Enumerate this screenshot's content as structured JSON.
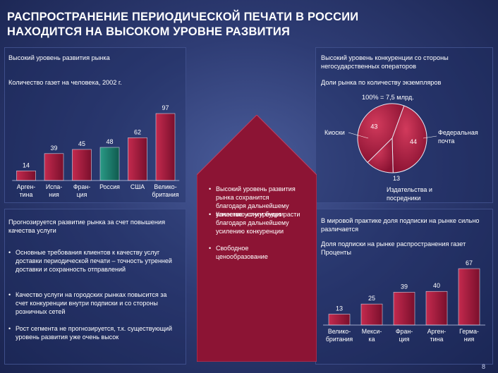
{
  "title_line1": "РАСПРОСТРАНЕНИЕ ПЕРИОДИЧЕСКОЙ ПЕЧАТИ В РОССИИ",
  "title_line2": "НАХОДИТСЯ НА ВЫСОКОМ УРОВНЕ РАЗВИТИЯ",
  "left": {
    "header": "Высокий уровень развития рынка",
    "subheader": "Количество газет на человека, 2002 г.",
    "note1": "Прогнозируется развитие рынка за счет повышения качества услуги",
    "bullets": [
      "Основные требования клиентов к качеству услуг доставки периодической печати – точность утренней доставки и сохранность отправлений",
      "Качество услуги на городских рынках повысится за счет конкуренции внутри подписки и со стороны розничных сетей",
      "Рост сегмента не прогнозируется, т.к. существующий уровень развития уже очень высок"
    ]
  },
  "center": {
    "bullets": [
      "Высокий уровень развития рынка сохранится благодаря дальнейшему усилению конкуренции",
      "Качество услуги будет расти благодаря дальнейшему усилению конкуренции",
      "Свободное ценообразование"
    ]
  },
  "right": {
    "header": "Высокий уровень конкуренции со стороны негосударственных операторов",
    "subheader": "Доли рынка по количеству экземпляров",
    "pie_total": "100% = 7,5 млрд.",
    "note1": "В мировой практике доля подписки на рынке сильно различается",
    "subheader2": "Доля подписки на рынке распространения газет",
    "subheader2b": "Проценты"
  },
  "chart_data": [
    {
      "type": "bar",
      "title": "Количество газет на человека, 2002 г.",
      "categories": [
        "Аргентина",
        "Испания",
        "Франция",
        "Россия",
        "США",
        "Великобритания"
      ],
      "category_labels": [
        [
          "Арген-",
          "тина"
        ],
        [
          "Испа-",
          "ния"
        ],
        [
          "Фран-",
          "ция"
        ],
        [
          "Россия",
          ""
        ],
        [
          "США",
          ""
        ],
        [
          "Велико-",
          "британия"
        ]
      ],
      "values": [
        14,
        39,
        45,
        48,
        62,
        97
      ],
      "highlight": "Россия",
      "colors": {
        "bar": "#9e1a3c",
        "highlight": "#1a7a6a"
      }
    },
    {
      "type": "pie",
      "title": "Доли рынка по количеству экземпляров",
      "total": "100% = 7,5 млрд.",
      "slices": [
        {
          "name": "Киоски",
          "value": 43
        },
        {
          "name": "Федеральная почта",
          "value": 44
        },
        {
          "name": "Издательства и посредники",
          "value": 13
        }
      ],
      "colors": {
        "fill": "#b5203f"
      }
    },
    {
      "type": "bar",
      "title": "Доля подписки на рынке распространения газет",
      "ylabel": "Проценты",
      "categories": [
        "Великобритания",
        "Мексика",
        "Франция",
        "Аргентина",
        "Германия"
      ],
      "category_labels": [
        [
          "Велико-",
          "британия"
        ],
        [
          "Мекси-",
          "ка"
        ],
        [
          "Фран-",
          "ция"
        ],
        [
          "Арген-",
          "тина"
        ],
        [
          "Герма-",
          "ния"
        ]
      ],
      "values": [
        13,
        25,
        39,
        40,
        67
      ],
      "colors": {
        "bar": "#9e1a3c"
      }
    }
  ],
  "page_number": "8"
}
